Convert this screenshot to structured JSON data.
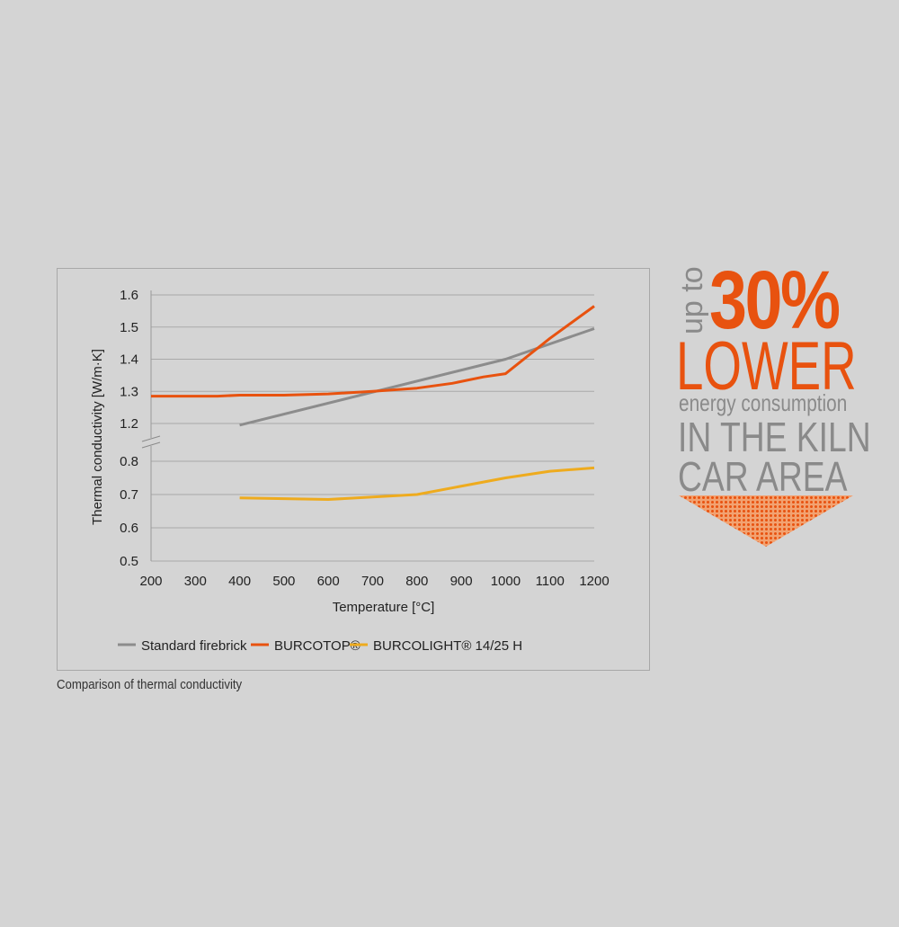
{
  "chart_data": {
    "type": "line",
    "xlabel": "Temperature [°C]",
    "ylabel": "Thermal conductivity [W/m·K]",
    "x_ticks": [
      200,
      300,
      400,
      500,
      600,
      700,
      800,
      900,
      1000,
      1100,
      1200
    ],
    "xlim": [
      200,
      1200
    ],
    "y_ticks_upper": [
      1.2,
      1.3,
      1.4,
      1.5,
      1.6
    ],
    "y_ticks_lower": [
      0.5,
      0.6,
      0.7,
      0.8
    ],
    "ylim_upper": [
      1.2,
      1.6
    ],
    "ylim_lower": [
      0.5,
      0.8
    ],
    "axis_break": true,
    "grid": true,
    "legend_position": "bottom",
    "series": [
      {
        "name": "Standard firebrick",
        "color": "#8c8c8c",
        "x": [
          400,
          1000,
          1200
        ],
        "y": [
          1.195,
          1.4,
          1.495
        ]
      },
      {
        "name": "BURCOTOP®",
        "color": "#e8520f",
        "x": [
          200,
          350,
          400,
          500,
          600,
          700,
          800,
          880,
          950,
          1000,
          1100,
          1200
        ],
        "y": [
          1.285,
          1.285,
          1.288,
          1.288,
          1.292,
          1.3,
          1.31,
          1.325,
          1.345,
          1.355,
          1.465,
          1.565
        ]
      },
      {
        "name": "BURCOLIGHT® 14/25 H",
        "color": "#eeab1e",
        "x": [
          400,
          600,
          800,
          1000,
          1100,
          1200
        ],
        "y": [
          0.69,
          0.685,
          0.7,
          0.75,
          0.77,
          0.78
        ]
      }
    ]
  },
  "caption": "Comparison of thermal conductivity",
  "promo": {
    "up_to": "up to",
    "percent": "30%",
    "lower": "LOWER",
    "energy": "energy consumption",
    "line_kiln": "IN THE KILN",
    "line_car": "CAR AREA",
    "accent_color": "#e8520f",
    "gray_color": "#8a8a8a"
  }
}
